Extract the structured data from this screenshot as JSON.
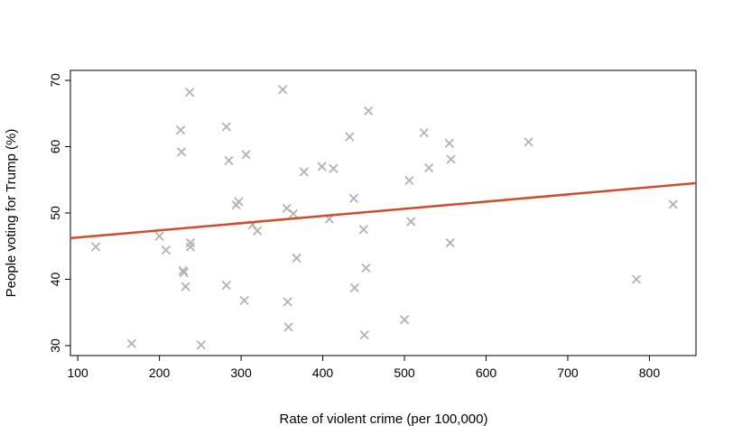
{
  "chart_data": {
    "type": "scatter",
    "title": "",
    "xlabel": "Rate of violent crime (per 100,000)",
    "ylabel": "People voting for Trump (%)",
    "xlim": [
      91,
      857
    ],
    "ylim": [
      28.5,
      71.5
    ],
    "xticks": [
      100,
      200,
      300,
      400,
      500,
      600,
      700,
      800
    ],
    "yticks": [
      30,
      40,
      50,
      60,
      70
    ],
    "grid": false,
    "marker": "x",
    "marker_color": "#b3b3b3",
    "line_color": "#d24b2a",
    "points": [
      {
        "x": 122,
        "y": 44.9
      },
      {
        "x": 166,
        "y": 30.3
      },
      {
        "x": 200,
        "y": 46.5
      },
      {
        "x": 208,
        "y": 44.4
      },
      {
        "x": 226,
        "y": 62.5
      },
      {
        "x": 227,
        "y": 59.2
      },
      {
        "x": 229,
        "y": 41.3
      },
      {
        "x": 230,
        "y": 41.0
      },
      {
        "x": 232,
        "y": 38.9
      },
      {
        "x": 237,
        "y": 68.2
      },
      {
        "x": 238,
        "y": 45.5
      },
      {
        "x": 238,
        "y": 44.9
      },
      {
        "x": 251,
        "y": 30.1
      },
      {
        "x": 282,
        "y": 63.0
      },
      {
        "x": 282,
        "y": 39.1
      },
      {
        "x": 285,
        "y": 57.9
      },
      {
        "x": 294,
        "y": 51.2
      },
      {
        "x": 297,
        "y": 51.7
      },
      {
        "x": 304,
        "y": 36.8
      },
      {
        "x": 306,
        "y": 58.8
      },
      {
        "x": 314,
        "y": 48.2
      },
      {
        "x": 320,
        "y": 47.3
      },
      {
        "x": 351,
        "y": 68.6
      },
      {
        "x": 356,
        "y": 50.7
      },
      {
        "x": 357,
        "y": 36.6
      },
      {
        "x": 358,
        "y": 32.8
      },
      {
        "x": 364,
        "y": 49.9
      },
      {
        "x": 368,
        "y": 43.2
      },
      {
        "x": 377,
        "y": 56.2
      },
      {
        "x": 399,
        "y": 57.0
      },
      {
        "x": 408,
        "y": 49.1
      },
      {
        "x": 413,
        "y": 56.7
      },
      {
        "x": 433,
        "y": 61.5
      },
      {
        "x": 438,
        "y": 52.2
      },
      {
        "x": 439,
        "y": 38.7
      },
      {
        "x": 450,
        "y": 47.5
      },
      {
        "x": 451,
        "y": 31.6
      },
      {
        "x": 453,
        "y": 41.7
      },
      {
        "x": 456,
        "y": 65.4
      },
      {
        "x": 500,
        "y": 33.9
      },
      {
        "x": 506,
        "y": 54.9
      },
      {
        "x": 508,
        "y": 48.7
      },
      {
        "x": 524,
        "y": 62.1
      },
      {
        "x": 530,
        "y": 56.8
      },
      {
        "x": 555,
        "y": 60.5
      },
      {
        "x": 556,
        "y": 45.5
      },
      {
        "x": 557,
        "y": 58.1
      },
      {
        "x": 652,
        "y": 60.7
      },
      {
        "x": 784,
        "y": 40.0
      },
      {
        "x": 829,
        "y": 51.3
      }
    ],
    "trend_line": {
      "x": [
        91,
        857
      ],
      "y": [
        46.2,
        54.5
      ]
    }
  }
}
